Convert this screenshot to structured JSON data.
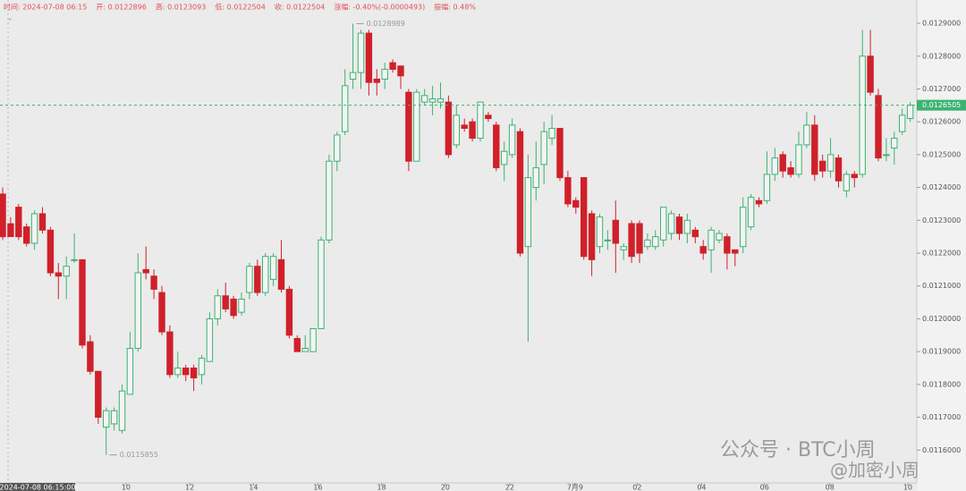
{
  "info_bar": [
    "时间: 2024-07-08 06:15",
    "开: 0.0122896",
    "高: 0.0123093",
    "低: 0.0122504",
    "收: 0.0122504",
    "涨幅: -0.40%(-0.0000493)",
    "振幅: 0.48%"
  ],
  "cursor_time": "2024-07-08 06:15:00",
  "watermark": [
    "公众号 · BTC小周",
    "@加密小周"
  ],
  "chart_data": {
    "type": "candlestick",
    "colors": {
      "up": "#3cb371",
      "down": "#d0202a"
    },
    "ylim": [
      0.0115,
      0.012971
    ],
    "yticks": [
      {
        "value": 0.0129,
        "label": "0.0129000"
      },
      {
        "value": 0.0128,
        "label": "0.0128000"
      },
      {
        "value": 0.0127,
        "label": "0.0127000"
      },
      {
        "value": 0.0126,
        "label": "0.0126000"
      },
      {
        "value": 0.0125,
        "label": "0.0125000"
      },
      {
        "value": 0.0124,
        "label": "0.0124000"
      },
      {
        "value": 0.0123,
        "label": "0.0123000"
      },
      {
        "value": 0.0122,
        "label": "0.0122000"
      },
      {
        "value": 0.0121,
        "label": "0.0121000"
      },
      {
        "value": 0.012,
        "label": "0.0120000"
      },
      {
        "value": 0.0119,
        "label": "0.0119000"
      },
      {
        "value": 0.0118,
        "label": "0.0118000"
      },
      {
        "value": 0.0117,
        "label": "0.0117000"
      },
      {
        "value": 0.0116,
        "label": "0.0116000"
      }
    ],
    "xticks": [
      {
        "value": 15.5,
        "label": "10"
      },
      {
        "value": 23.5,
        "label": "12"
      },
      {
        "value": 31.5,
        "label": "14"
      },
      {
        "value": 39.6,
        "label": "16"
      },
      {
        "value": 47.6,
        "label": "18"
      },
      {
        "value": 55.6,
        "label": "20"
      },
      {
        "value": 63.7,
        "label": "22"
      },
      {
        "value": 71.9,
        "label": "7月9"
      },
      {
        "value": 79.7,
        "label": "02"
      },
      {
        "value": 87.8,
        "label": "04"
      },
      {
        "value": 95.7,
        "label": "06"
      },
      {
        "value": 103.9,
        "label": "08"
      },
      {
        "value": 113.7,
        "label": "10"
      }
    ],
    "last_price": 0.0126505,
    "annotations": [
      {
        "index": 44,
        "value": 0.0128989
      },
      {
        "index": 13,
        "value": 0.0115855
      }
    ],
    "ohlc": [
      [
        0.01238,
        0.0124,
        0.01224,
        0.01225
      ],
      [
        0.0122896,
        0.0123093,
        0.0122504,
        0.0122504
      ],
      [
        0.01234,
        0.01235,
        0.01224,
        0.01225
      ],
      [
        0.01228,
        0.01229,
        0.01222,
        0.01223
      ],
      [
        0.01223,
        0.01233,
        0.01221,
        0.01232
      ],
      [
        0.01232,
        0.01234,
        0.01226,
        0.01227
      ],
      [
        0.01227,
        0.01228,
        0.01213,
        0.01214
      ],
      [
        0.01214,
        0.01217,
        0.01206,
        0.01213
      ],
      [
        0.01213,
        0.01219,
        0.01206,
        0.01216
      ],
      [
        0.01218,
        0.01226,
        0.01217,
        0.01218
      ],
      [
        0.01218,
        0.01218,
        0.01191,
        0.01192
      ],
      [
        0.01193,
        0.01195,
        0.01183,
        0.01184
      ],
      [
        0.01184,
        0.01184,
        0.01168,
        0.0117
      ],
      [
        0.01167,
        0.01173,
        0.0115855,
        0.01172
      ],
      [
        0.01168,
        0.01173,
        0.01166,
        0.01172
      ],
      [
        0.01166,
        0.0118,
        0.01165,
        0.01178
      ],
      [
        0.01177,
        0.01196,
        0.01177,
        0.01191
      ],
      [
        0.01191,
        0.0122,
        0.0119,
        0.01214
      ],
      [
        0.01215,
        0.01222,
        0.01212,
        0.01214
      ],
      [
        0.01213,
        0.01215,
        0.01206,
        0.01209
      ],
      [
        0.01208,
        0.0121,
        0.01195,
        0.01196
      ],
      [
        0.01196,
        0.01198,
        0.01182,
        0.01183
      ],
      [
        0.01183,
        0.0119,
        0.01182,
        0.01185
      ],
      [
        0.01185,
        0.01186,
        0.01181,
        0.01183
      ],
      [
        0.01185,
        0.01186,
        0.01178,
        0.01182
      ],
      [
        0.01183,
        0.01189,
        0.0118,
        0.01188
      ],
      [
        0.01187,
        0.01202,
        0.01187,
        0.012
      ],
      [
        0.012,
        0.01209,
        0.01198,
        0.01207
      ],
      [
        0.01207,
        0.01211,
        0.01202,
        0.01203
      ],
      [
        0.01206,
        0.01207,
        0.012,
        0.01201
      ],
      [
        0.01202,
        0.01208,
        0.01201,
        0.01206
      ],
      [
        0.01208,
        0.01217,
        0.01206,
        0.01216
      ],
      [
        0.01216,
        0.01218,
        0.01207,
        0.01208
      ],
      [
        0.01208,
        0.0122,
        0.01207,
        0.01219
      ],
      [
        0.01212,
        0.0122,
        0.0121,
        0.01219
      ],
      [
        0.01218,
        0.01224,
        0.01208,
        0.01209
      ],
      [
        0.01209,
        0.0121,
        0.01194,
        0.01195
      ],
      [
        0.01194,
        0.01195,
        0.0119,
        0.0119
      ],
      [
        0.0119,
        0.01195,
        0.0119,
        0.01191
      ],
      [
        0.0119,
        0.01197,
        0.0119,
        0.01197
      ],
      [
        0.01197,
        0.01225,
        0.01197,
        0.01224
      ],
      [
        0.01224,
        0.0125,
        0.01223,
        0.01248
      ],
      [
        0.01248,
        0.01257,
        0.01245,
        0.01256
      ],
      [
        0.01257,
        0.01276,
        0.01256,
        0.01271
      ],
      [
        0.01273,
        0.0128989,
        0.0127,
        0.01275
      ],
      [
        0.01275,
        0.01288,
        0.0127,
        0.01287
      ],
      [
        0.01287,
        0.01288,
        0.01268,
        0.01272
      ],
      [
        0.01273,
        0.01276,
        0.01268,
        0.01272
      ],
      [
        0.01273,
        0.01278,
        0.0127,
        0.01276
      ],
      [
        0.01278,
        0.01279,
        0.01275,
        0.01276
      ],
      [
        0.01277,
        0.01277,
        0.0127,
        0.01274
      ],
      [
        0.01269,
        0.0127,
        0.01245,
        0.01248
      ],
      [
        0.01248,
        0.0127,
        0.01248,
        0.01269
      ],
      [
        0.01266,
        0.0127,
        0.01265,
        0.01268
      ],
      [
        0.01266,
        0.01271,
        0.01262,
        0.01267
      ],
      [
        0.01266,
        0.01272,
        0.01264,
        0.01267
      ],
      [
        0.01266,
        0.01268,
        0.01249,
        0.0125
      ],
      [
        0.01253,
        0.01265,
        0.01252,
        0.01262
      ],
      [
        0.01259,
        0.01261,
        0.01257,
        0.01258
      ],
      [
        0.0126,
        0.01261,
        0.01254,
        0.01255
      ],
      [
        0.01255,
        0.01266,
        0.01254,
        0.01266
      ],
      [
        0.01262,
        0.01263,
        0.0126,
        0.01261
      ],
      [
        0.01259,
        0.0126,
        0.01245,
        0.01246
      ],
      [
        0.01247,
        0.01254,
        0.01242,
        0.01251
      ],
      [
        0.0125,
        0.01261,
        0.01249,
        0.01259
      ],
      [
        0.01257,
        0.01258,
        0.01219,
        0.0122
      ],
      [
        0.01222,
        0.0125,
        0.01193,
        0.01243
      ],
      [
        0.0124,
        0.01254,
        0.01236,
        0.01246
      ],
      [
        0.01247,
        0.0126,
        0.01241,
        0.01257
      ],
      [
        0.01255,
        0.01262,
        0.01253,
        0.01258
      ],
      [
        0.01258,
        0.01258,
        0.01242,
        0.01243
      ],
      [
        0.01243,
        0.01245,
        0.01234,
        0.01235
      ],
      [
        0.01236,
        0.01237,
        0.01232,
        0.01234
      ],
      [
        0.01243,
        0.01243,
        0.01218,
        0.01219
      ],
      [
        0.01232,
        0.01233,
        0.01213,
        0.01218
      ],
      [
        0.01222,
        0.01232,
        0.0122,
        0.01231
      ],
      [
        0.01224,
        0.01227,
        0.01221,
        0.01224
      ],
      [
        0.0123,
        0.01236,
        0.01214,
        0.01223
      ],
      [
        0.01221,
        0.01223,
        0.01218,
        0.01222
      ],
      [
        0.01229,
        0.0123,
        0.01217,
        0.01219
      ],
      [
        0.01229,
        0.0123,
        0.01217,
        0.0122
      ],
      [
        0.01222,
        0.01226,
        0.01221,
        0.01224
      ],
      [
        0.01222,
        0.01227,
        0.01221,
        0.01225
      ],
      [
        0.01224,
        0.01234,
        0.01222,
        0.01234
      ],
      [
        0.01226,
        0.01233,
        0.01224,
        0.01232
      ],
      [
        0.01231,
        0.01232,
        0.01224,
        0.01226
      ],
      [
        0.01226,
        0.01232,
        0.01223,
        0.0123
      ],
      [
        0.01227,
        0.01228,
        0.01223,
        0.01225
      ],
      [
        0.01222,
        0.01224,
        0.01218,
        0.0122
      ],
      [
        0.01221,
        0.01228,
        0.01214,
        0.01227
      ],
      [
        0.01224,
        0.01227,
        0.01223,
        0.01226
      ],
      [
        0.01225,
        0.01226,
        0.01215,
        0.0122
      ],
      [
        0.01221,
        0.01221,
        0.01216,
        0.0122
      ],
      [
        0.01222,
        0.01237,
        0.0122,
        0.01234
      ],
      [
        0.01228,
        0.01238,
        0.01227,
        0.01237
      ],
      [
        0.01236,
        0.01237,
        0.01234,
        0.01235
      ],
      [
        0.01236,
        0.01251,
        0.01235,
        0.01244
      ],
      [
        0.01244,
        0.01252,
        0.01242,
        0.01249
      ],
      [
        0.0125,
        0.01251,
        0.01243,
        0.01245
      ],
      [
        0.01246,
        0.01248,
        0.01243,
        0.01244
      ],
      [
        0.01244,
        0.01257,
        0.01243,
        0.01253
      ],
      [
        0.01253,
        0.01263,
        0.01252,
        0.01259
      ],
      [
        0.01259,
        0.01262,
        0.01242,
        0.01244
      ],
      [
        0.01248,
        0.0125,
        0.01243,
        0.01245
      ],
      [
        0.01245,
        0.01255,
        0.01243,
        0.0125
      ],
      [
        0.01249,
        0.0125,
        0.0124,
        0.01242
      ],
      [
        0.01239,
        0.01245,
        0.01237,
        0.01244
      ],
      [
        0.01244,
        0.01245,
        0.0124,
        0.01243
      ],
      [
        0.01244,
        0.01288,
        0.01243,
        0.0128
      ],
      [
        0.0128,
        0.01288,
        0.01268,
        0.01269
      ],
      [
        0.01268,
        0.0127,
        0.01248,
        0.01249
      ],
      [
        0.0125,
        0.01255,
        0.01248,
        0.0125
      ],
      [
        0.01252,
        0.01257,
        0.01247,
        0.01255
      ],
      [
        0.01257,
        0.01264,
        0.01256,
        0.01262
      ],
      [
        0.01261,
        0.01266,
        0.0126,
        0.0126505
      ]
    ]
  }
}
